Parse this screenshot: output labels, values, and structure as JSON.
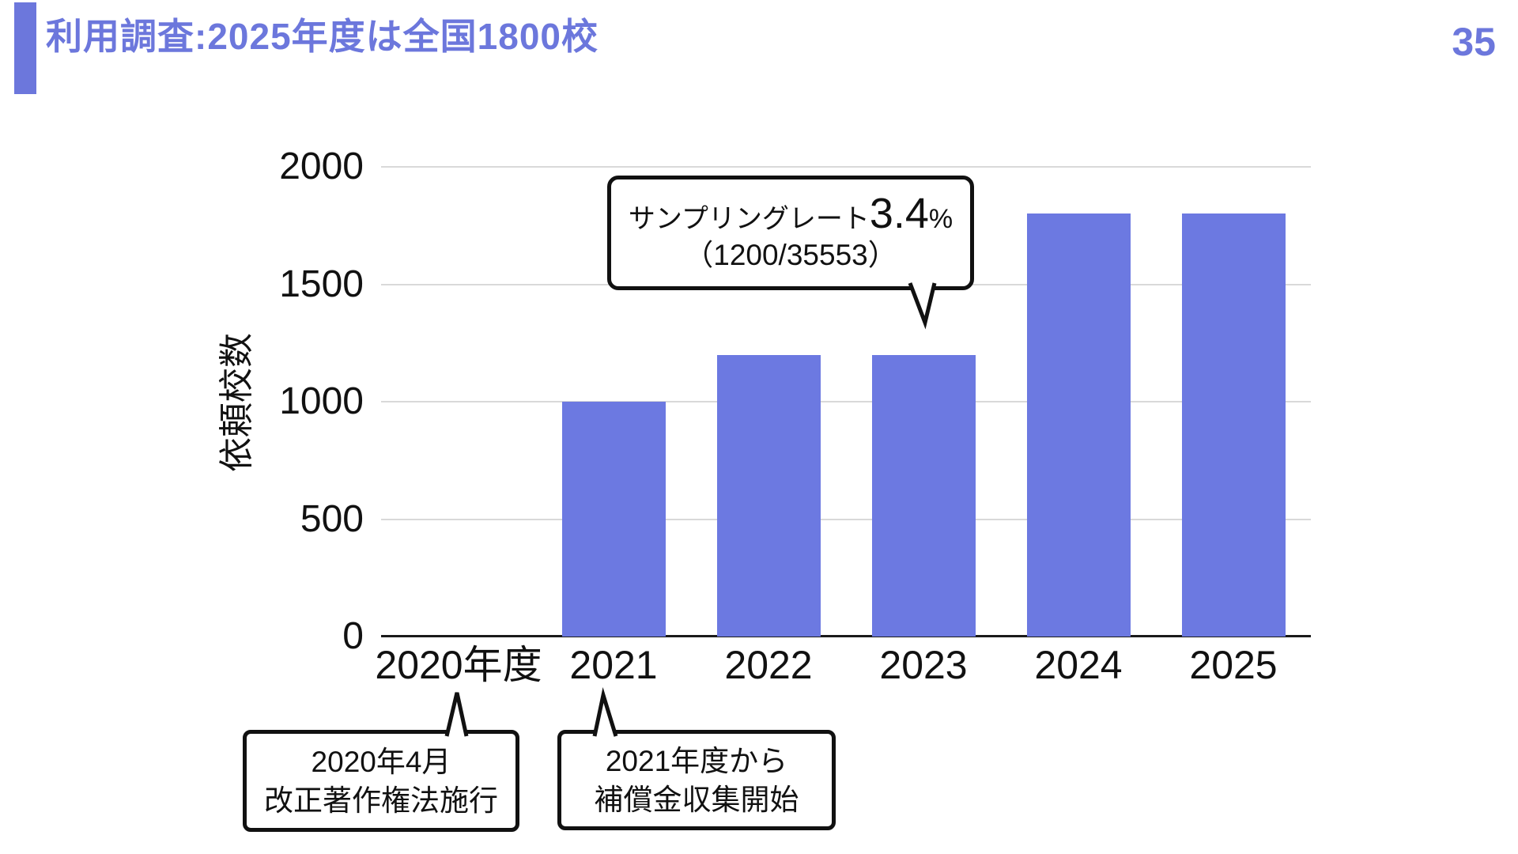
{
  "header": {
    "title": "利用調査:2025年度は全国1800校",
    "page_number": "35"
  },
  "colors": {
    "accent": "#6C77DC",
    "bar": "#6C79E1",
    "grid": "#D9D9D9",
    "axis": "#1A1A1A",
    "callout_border": "#111111"
  },
  "chart_data": {
    "type": "bar",
    "categories": [
      "2020年度",
      "2021",
      "2022",
      "2023",
      "2024",
      "2025"
    ],
    "values": [
      0,
      1000,
      1200,
      1200,
      1800,
      1800
    ],
    "title": "",
    "xlabel": "",
    "ylabel": "依頼校数",
    "ylim": [
      0,
      2000
    ],
    "yticks": [
      0,
      500,
      1000,
      1500,
      2000
    ],
    "grid": true,
    "legend": "none",
    "bar_color": "#6C79E1"
  },
  "annotations": {
    "sampling_rate": {
      "prefix": "サンプリングレート",
      "value": "3.4",
      "unit": "%",
      "line2": "（1200/35553）",
      "points_to": "2023"
    },
    "law_2020": {
      "line1": "2020年4月",
      "line2": "改正著作権法施行",
      "points_to": "2020年度"
    },
    "levy_2021": {
      "line1": "2021年度から",
      "line2": "補償金収集開始",
      "points_to": "2021"
    }
  }
}
